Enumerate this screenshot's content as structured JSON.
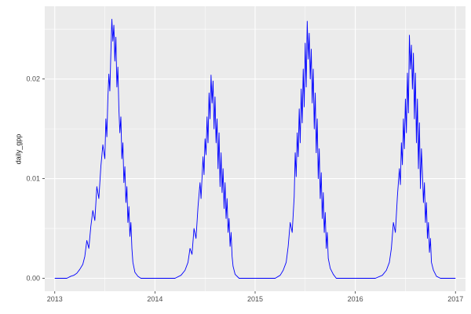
{
  "chart_data": {
    "type": "line",
    "title": "",
    "xlabel": "",
    "ylabel": "daily_gpp",
    "legend": "none",
    "grid": "on",
    "panel_bg": "#EBEBEB",
    "grid_color": "#FFFFFF",
    "line_color": "#0000FF",
    "tick_label_color": "#4D4D4D",
    "tick_mark_color": "#333333",
    "xlim": [
      2012.9,
      2017.1
    ],
    "ylim": [
      -0.0013,
      0.0273
    ],
    "x_ticks": [
      2013,
      2014,
      2015,
      2016,
      2017
    ],
    "x_tick_labels": [
      "2013",
      "2014",
      "2015",
      "2016",
      "2017"
    ],
    "x_minor_ticks": [
      2013.5,
      2014.5,
      2015.5,
      2016.5
    ],
    "y_ticks": [
      0.0,
      0.01,
      0.02
    ],
    "y_tick_labels": [
      "0.00",
      "0.01",
      "0.02"
    ],
    "y_minor_ticks": [
      0.005,
      0.015,
      0.025
    ],
    "series": [
      {
        "name": "daily_gpp",
        "points": [
          [
            2013.0,
            0
          ],
          [
            2013.06,
            0
          ],
          [
            2013.12,
            0
          ],
          [
            2013.16,
            0.0002
          ],
          [
            2013.19,
            0.0003
          ],
          [
            2013.22,
            0.0005
          ],
          [
            2013.25,
            0.0009
          ],
          [
            2013.28,
            0.0014
          ],
          [
            2013.3,
            0.0022
          ],
          [
            2013.32,
            0.0038
          ],
          [
            2013.34,
            0.003
          ],
          [
            2013.36,
            0.0052
          ],
          [
            2013.38,
            0.0068
          ],
          [
            2013.4,
            0.0058
          ],
          [
            2013.42,
            0.0092
          ],
          [
            2013.44,
            0.008
          ],
          [
            2013.46,
            0.0112
          ],
          [
            2013.48,
            0.0134
          ],
          [
            2013.5,
            0.012
          ],
          [
            2013.51,
            0.016
          ],
          [
            2013.52,
            0.0142
          ],
          [
            2013.53,
            0.018
          ],
          [
            2013.54,
            0.0205
          ],
          [
            2013.55,
            0.0188
          ],
          [
            2013.56,
            0.0226
          ],
          [
            2013.57,
            0.026
          ],
          [
            2013.58,
            0.0238
          ],
          [
            2013.59,
            0.0254
          ],
          [
            2013.6,
            0.0218
          ],
          [
            2013.61,
            0.0242
          ],
          [
            2013.62,
            0.0192
          ],
          [
            2013.63,
            0.0212
          ],
          [
            2013.64,
            0.017
          ],
          [
            2013.65,
            0.0146
          ],
          [
            2013.66,
            0.0162
          ],
          [
            2013.67,
            0.012
          ],
          [
            2013.68,
            0.0136
          ],
          [
            2013.69,
            0.0096
          ],
          [
            2013.7,
            0.0112
          ],
          [
            2013.71,
            0.0076
          ],
          [
            2013.72,
            0.0092
          ],
          [
            2013.73,
            0.0056
          ],
          [
            2013.74,
            0.0072
          ],
          [
            2013.75,
            0.0042
          ],
          [
            2013.76,
            0.0056
          ],
          [
            2013.77,
            0.003
          ],
          [
            2013.78,
            0.0016
          ],
          [
            2013.8,
            0.0006
          ],
          [
            2013.83,
            0.0002
          ],
          [
            2013.86,
            0
          ],
          [
            2013.92,
            0
          ],
          [
            2014.0,
            0
          ],
          [
            2014.1,
            0
          ],
          [
            2014.2,
            0
          ],
          [
            2014.26,
            0.0003
          ],
          [
            2014.3,
            0.0008
          ],
          [
            2014.33,
            0.0016
          ],
          [
            2014.35,
            0.003
          ],
          [
            2014.37,
            0.0024
          ],
          [
            2014.39,
            0.005
          ],
          [
            2014.41,
            0.004
          ],
          [
            2014.43,
            0.0072
          ],
          [
            2014.45,
            0.0096
          ],
          [
            2014.46,
            0.008
          ],
          [
            2014.48,
            0.0122
          ],
          [
            2014.49,
            0.0104
          ],
          [
            2014.5,
            0.014
          ],
          [
            2014.51,
            0.0124
          ],
          [
            2014.52,
            0.0162
          ],
          [
            2014.53,
            0.0136
          ],
          [
            2014.54,
            0.0186
          ],
          [
            2014.55,
            0.016
          ],
          [
            2014.56,
            0.0204
          ],
          [
            2014.57,
            0.0176
          ],
          [
            2014.58,
            0.0198
          ],
          [
            2014.59,
            0.015
          ],
          [
            2014.6,
            0.0182
          ],
          [
            2014.61,
            0.0136
          ],
          [
            2014.62,
            0.016
          ],
          [
            2014.63,
            0.011
          ],
          [
            2014.64,
            0.0146
          ],
          [
            2014.65,
            0.0092
          ],
          [
            2014.66,
            0.0126
          ],
          [
            2014.67,
            0.0086
          ],
          [
            2014.68,
            0.011
          ],
          [
            2014.69,
            0.007
          ],
          [
            2014.7,
            0.0096
          ],
          [
            2014.71,
            0.006
          ],
          [
            2014.72,
            0.008
          ],
          [
            2014.73,
            0.0046
          ],
          [
            2014.74,
            0.006
          ],
          [
            2014.75,
            0.0032
          ],
          [
            2014.76,
            0.0046
          ],
          [
            2014.77,
            0.0022
          ],
          [
            2014.78,
            0.0012
          ],
          [
            2014.8,
            0.0004
          ],
          [
            2014.84,
            0
          ],
          [
            2014.92,
            0
          ],
          [
            2015.0,
            0
          ],
          [
            2015.1,
            0
          ],
          [
            2015.2,
            0
          ],
          [
            2015.25,
            0.0003
          ],
          [
            2015.28,
            0.0008
          ],
          [
            2015.31,
            0.0016
          ],
          [
            2015.33,
            0.0032
          ],
          [
            2015.35,
            0.0056
          ],
          [
            2015.37,
            0.0046
          ],
          [
            2015.39,
            0.0082
          ],
          [
            2015.4,
            0.0126
          ],
          [
            2015.41,
            0.0102
          ],
          [
            2015.42,
            0.0146
          ],
          [
            2015.43,
            0.0122
          ],
          [
            2015.44,
            0.017
          ],
          [
            2015.45,
            0.0136
          ],
          [
            2015.46,
            0.019
          ],
          [
            2015.47,
            0.0156
          ],
          [
            2015.48,
            0.021
          ],
          [
            2015.49,
            0.0172
          ],
          [
            2015.5,
            0.0236
          ],
          [
            2015.51,
            0.0192
          ],
          [
            2015.52,
            0.0258
          ],
          [
            2015.53,
            0.022
          ],
          [
            2015.54,
            0.0246
          ],
          [
            2015.55,
            0.02
          ],
          [
            2015.56,
            0.023
          ],
          [
            2015.57,
            0.0176
          ],
          [
            2015.58,
            0.021
          ],
          [
            2015.59,
            0.015
          ],
          [
            2015.6,
            0.0186
          ],
          [
            2015.61,
            0.0126
          ],
          [
            2015.62,
            0.016
          ],
          [
            2015.63,
            0.01
          ],
          [
            2015.64,
            0.013
          ],
          [
            2015.65,
            0.008
          ],
          [
            2015.66,
            0.0106
          ],
          [
            2015.67,
            0.006
          ],
          [
            2015.68,
            0.0086
          ],
          [
            2015.69,
            0.0046
          ],
          [
            2015.7,
            0.0066
          ],
          [
            2015.71,
            0.003
          ],
          [
            2015.72,
            0.0046
          ],
          [
            2015.73,
            0.002
          ],
          [
            2015.75,
            0.001
          ],
          [
            2015.78,
            0.0004
          ],
          [
            2015.81,
            0
          ],
          [
            2015.9,
            0
          ],
          [
            2016.0,
            0
          ],
          [
            2016.1,
            0
          ],
          [
            2016.2,
            0
          ],
          [
            2016.27,
            0.0003
          ],
          [
            2016.31,
            0.0008
          ],
          [
            2016.34,
            0.0016
          ],
          [
            2016.36,
            0.003
          ],
          [
            2016.38,
            0.0056
          ],
          [
            2016.4,
            0.0046
          ],
          [
            2016.42,
            0.0082
          ],
          [
            2016.44,
            0.011
          ],
          [
            2016.45,
            0.0094
          ],
          [
            2016.46,
            0.0136
          ],
          [
            2016.47,
            0.0114
          ],
          [
            2016.48,
            0.016
          ],
          [
            2016.49,
            0.013
          ],
          [
            2016.5,
            0.018
          ],
          [
            2016.51,
            0.0146
          ],
          [
            2016.52,
            0.0206
          ],
          [
            2016.53,
            0.0166
          ],
          [
            2016.54,
            0.0244
          ],
          [
            2016.55,
            0.021
          ],
          [
            2016.56,
            0.0234
          ],
          [
            2016.57,
            0.019
          ],
          [
            2016.58,
            0.0226
          ],
          [
            2016.59,
            0.016
          ],
          [
            2016.6,
            0.0206
          ],
          [
            2016.61,
            0.0136
          ],
          [
            2016.62,
            0.018
          ],
          [
            2016.63,
            0.011
          ],
          [
            2016.64,
            0.0156
          ],
          [
            2016.65,
            0.009
          ],
          [
            2016.66,
            0.013
          ],
          [
            2016.67,
            0.0106
          ],
          [
            2016.68,
            0.0076
          ],
          [
            2016.69,
            0.0096
          ],
          [
            2016.7,
            0.0056
          ],
          [
            2016.71,
            0.0076
          ],
          [
            2016.72,
            0.004
          ],
          [
            2016.73,
            0.0056
          ],
          [
            2016.74,
            0.0026
          ],
          [
            2016.75,
            0.004
          ],
          [
            2016.76,
            0.0016
          ],
          [
            2016.78,
            0.0008
          ],
          [
            2016.81,
            0.0002
          ],
          [
            2016.85,
            0
          ],
          [
            2016.92,
            0
          ],
          [
            2017.0,
            0
          ]
        ]
      }
    ]
  }
}
